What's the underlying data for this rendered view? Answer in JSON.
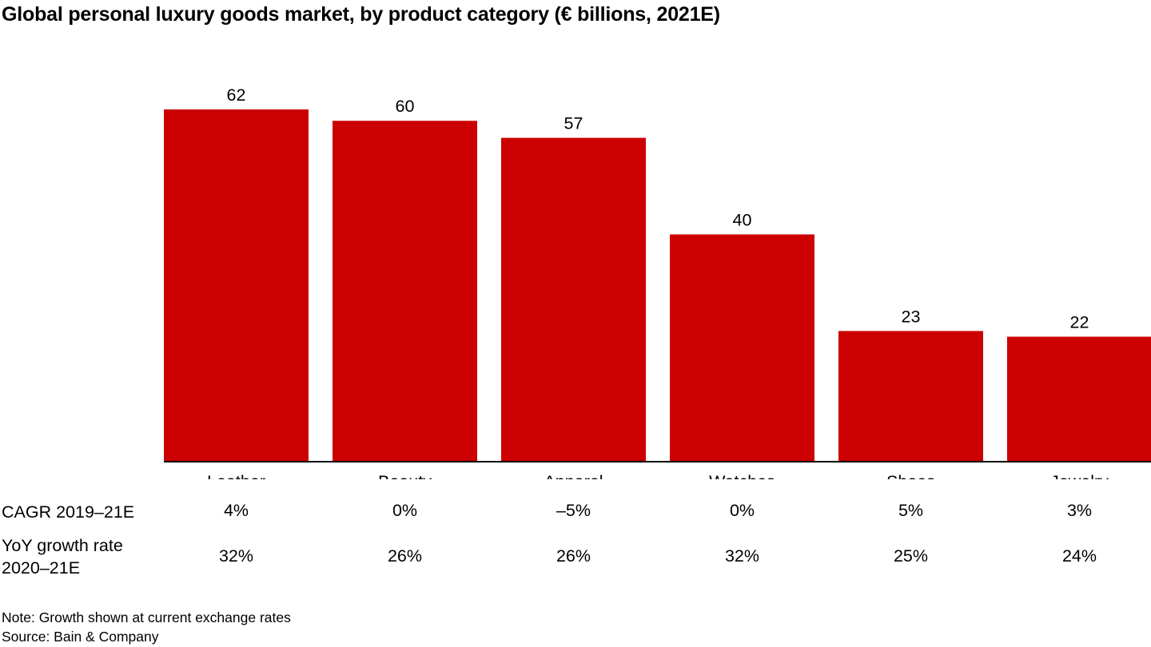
{
  "chart_data": {
    "type": "bar",
    "title": "Global personal luxury goods market, by product category (€ billions, 2021E)",
    "xlabel": "",
    "ylabel": "€ billions",
    "ylim": [
      0,
      62
    ],
    "grid": false,
    "categories": [
      "Leather",
      "Beauty",
      "Apparel",
      "Watches",
      "Shoes",
      "Jewelry"
    ],
    "values": [
      62,
      60,
      57,
      40,
      23,
      22
    ],
    "data_labels": [
      "62",
      "60",
      "57",
      "40",
      "23",
      "22"
    ],
    "bar_color": "#cc0000",
    "table_rows": [
      {
        "label": "CAGR 2019–21E",
        "values": [
          "4%",
          "0%",
          "–5%",
          "0%",
          "5%",
          "3%"
        ]
      },
      {
        "label_lines": [
          "YoY growth rate",
          "2020–21E"
        ],
        "values": [
          "32%",
          "26%",
          "26%",
          "32%",
          "25%",
          "24%"
        ]
      }
    ]
  },
  "footnotes": {
    "note": "Note: Growth shown at current exchange rates",
    "source": "Source: Bain & Company"
  }
}
